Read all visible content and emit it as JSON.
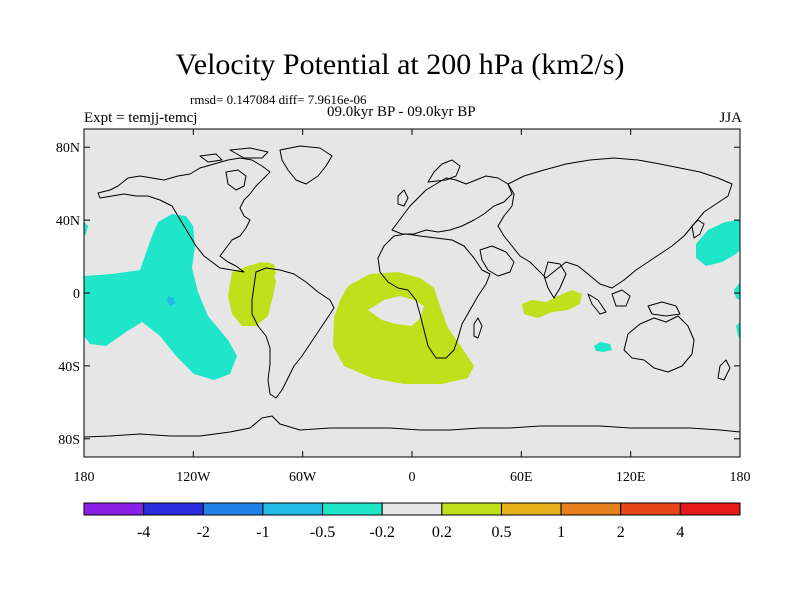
{
  "title": "Velocity Potential at 200 hPa (km2/s)",
  "stats": "rmsd= 0.147084 diff= 7.9616e-06",
  "left_label": "Expt = temjj-temcj",
  "center_label": "09.0kyr BP - 09.0kyr BP",
  "right_label": "JJA",
  "lat_labels": [
    {
      "lat": 80,
      "text": "80N"
    },
    {
      "lat": 40,
      "text": "40N"
    },
    {
      "lat": 0,
      "text": "0"
    },
    {
      "lat": -40,
      "text": "40S"
    },
    {
      "lat": -80,
      "text": "80S"
    }
  ],
  "lon_labels": [
    {
      "lon": -180,
      "text": "180"
    },
    {
      "lon": -120,
      "text": "120W"
    },
    {
      "lon": -60,
      "text": "60W"
    },
    {
      "lon": 0,
      "text": "0"
    },
    {
      "lon": 60,
      "text": "60E"
    },
    {
      "lon": 120,
      "text": "120E"
    },
    {
      "lon": 180,
      "text": "180"
    }
  ],
  "colorbar": {
    "colors": [
      "#8a1fe6",
      "#2b2be0",
      "#1f82e6",
      "#1fbde6",
      "#1fe6c8",
      "#e6e6e6",
      "#bfe01a",
      "#e6b01a",
      "#e6801a",
      "#e6441a",
      "#e61a1a"
    ],
    "labels": [
      "-4",
      "-2",
      "-1",
      "-0.5",
      "-0.2",
      "0.2",
      "0.5",
      "1",
      "2",
      "4"
    ]
  },
  "colors": {
    "background": "#e6e6e6",
    "negative_fill": "#1fe6c8",
    "positive_fill": "#bfe01a",
    "deep_negative_fill": "#1fbde6",
    "coast": "#000000"
  }
}
